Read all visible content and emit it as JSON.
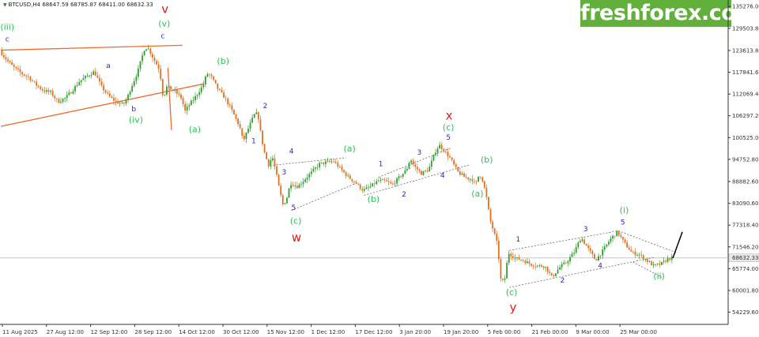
{
  "header": {
    "symbol": "BTCUSD,H4",
    "open": "68647.59",
    "high": "68785.87",
    "low": "68411.00",
    "close": "68632.33"
  },
  "brand": {
    "logo_text": "freshforex.com",
    "color": "#62b03c"
  },
  "colors": {
    "background": "#ffffff",
    "candle_up": "#2e9f2e",
    "candle_down": "#e0701e",
    "axis": "#333333",
    "trend_lines": "#ee6a2a",
    "channel_lines": "#555555",
    "current_price_line": "#c8c8c8",
    "wave_blue": "#2828b8",
    "wave_green": "#2ec25a",
    "wave_red": "#e01b1b",
    "impulse": "#000000"
  },
  "chart_data": {
    "type": "candlestick",
    "title": "",
    "xlabel": "",
    "ylabel": "",
    "ylim": [
      51000,
      137000
    ],
    "current_price": 68632.33,
    "y_tick_labels": [
      "135276.00",
      "129503.80",
      "123613.80",
      "117841.60",
      "112069.40",
      "106297.20",
      "100525.00",
      "94752.80",
      "88882.60",
      "83090.60",
      "77318.40",
      "71546.20",
      "65774.00",
      "60001.80",
      "54229.60"
    ],
    "x_tick_labels": [
      "11 Aug 2025",
      "27 Aug 12:00",
      "12 Sep 12:00",
      "28 Sep 12:00",
      "14 Oct 12:00",
      "30 Oct 12:00",
      "15 Nov 12:00",
      "1 Dec 12:00",
      "17 Dec 12:00",
      "3 Jan 20:00",
      "19 Jan 20:00",
      "5 Feb 00:00",
      "21 Feb 00:00",
      "9 Mar 00:00",
      "25 Mar 00:00"
    ],
    "x_range": [
      0,
      100
    ],
    "price_path": [
      [
        0,
        123500
      ],
      [
        1,
        121000
      ],
      [
        2,
        119000
      ],
      [
        3,
        117500
      ],
      [
        4,
        116500
      ],
      [
        5,
        114500
      ],
      [
        6,
        113000
      ],
      [
        7,
        112500
      ],
      [
        8,
        110000
      ],
      [
        9,
        111000
      ],
      [
        10,
        113000
      ],
      [
        11,
        115500
      ],
      [
        12,
        116800
      ],
      [
        13,
        118000
      ],
      [
        13.5,
        116000
      ],
      [
        14,
        114000
      ],
      [
        15,
        111500
      ],
      [
        16,
        110000
      ],
      [
        17,
        109300
      ],
      [
        17.5,
        110800
      ],
      [
        18,
        113500
      ],
      [
        19,
        118000
      ],
      [
        19.5,
        121500
      ],
      [
        20,
        124500
      ],
      [
        20.5,
        124000
      ],
      [
        21,
        122000
      ],
      [
        22,
        118500
      ],
      [
        22.5,
        111000
      ],
      [
        23,
        114000
      ],
      [
        24,
        113000
      ],
      [
        25,
        111000
      ],
      [
        25.5,
        107500
      ],
      [
        26,
        109000
      ],
      [
        27,
        111500
      ],
      [
        28,
        114500
      ],
      [
        28.5,
        117500
      ],
      [
        29,
        117000
      ],
      [
        30,
        113500
      ],
      [
        31,
        111000
      ],
      [
        32,
        107500
      ],
      [
        33,
        103500
      ],
      [
        33.5,
        99500
      ],
      [
        34,
        102000
      ],
      [
        35,
        106500
      ],
      [
        35.5,
        107000
      ],
      [
        36,
        100500
      ],
      [
        36.5,
        96000
      ],
      [
        37,
        93300
      ],
      [
        37.5,
        95500
      ],
      [
        38,
        91500
      ],
      [
        38.5,
        86500
      ],
      [
        39,
        82500
      ],
      [
        39.5,
        84500
      ],
      [
        40,
        88500
      ],
      [
        41,
        87500
      ],
      [
        42,
        89500
      ],
      [
        43,
        91500
      ],
      [
        44,
        93500
      ],
      [
        45,
        94000
      ],
      [
        46,
        94200
      ],
      [
        47,
        92000
      ],
      [
        48,
        90000
      ],
      [
        49,
        88500
      ],
      [
        50,
        86500
      ],
      [
        51,
        87500
      ],
      [
        52,
        89000
      ],
      [
        53,
        89000
      ],
      [
        54,
        88000
      ],
      [
        55,
        90000
      ],
      [
        56,
        92000
      ],
      [
        56.5,
        95000
      ],
      [
        57,
        93000
      ],
      [
        58,
        91000
      ],
      [
        59,
        92000
      ],
      [
        60,
        97000
      ],
      [
        60.5,
        98500
      ],
      [
        61,
        97500
      ],
      [
        62,
        95000
      ],
      [
        63,
        91500
      ],
      [
        64,
        90000
      ],
      [
        65,
        89500
      ],
      [
        65.5,
        88000
      ],
      [
        66,
        91000
      ],
      [
        66.5,
        89000
      ],
      [
        67,
        84500
      ],
      [
        67.5,
        78500
      ],
      [
        68,
        75500
      ],
      [
        68.5,
        72000
      ],
      [
        69,
        62000
      ],
      [
        69.5,
        63000
      ],
      [
        70,
        70000
      ],
      [
        71,
        68500
      ],
      [
        72,
        68000
      ],
      [
        73,
        67000
      ],
      [
        74,
        66500
      ],
      [
        75,
        66500
      ],
      [
        76,
        63500
      ],
      [
        77,
        66000
      ],
      [
        78,
        67500
      ],
      [
        79,
        70000
      ],
      [
        80,
        74000
      ],
      [
        81,
        71000
      ],
      [
        82,
        68000
      ],
      [
        83,
        70500
      ],
      [
        84,
        73500
      ],
      [
        85,
        75500
      ],
      [
        86,
        72500
      ],
      [
        87,
        70000
      ],
      [
        88,
        69500
      ],
      [
        89,
        68000
      ],
      [
        90,
        66500
      ],
      [
        91,
        67000
      ],
      [
        92,
        68400
      ],
      [
        92.5,
        68600
      ]
    ],
    "impulse_line": [
      [
        92.5,
        68600
      ],
      [
        93.8,
        75500
      ]
    ],
    "orange_lines": [
      [
        [
          0,
          123700
        ],
        [
          25,
          125000
        ]
      ],
      [
        [
          0,
          103500
        ],
        [
          28,
          114800
        ]
      ],
      [
        [
          23,
          119000
        ],
        [
          23.5,
          102500
        ]
      ]
    ],
    "channel_lines": [
      [
        [
          37.5,
          93200
        ],
        [
          47.5,
          95200
        ]
      ],
      [
        [
          40,
          81200
        ],
        [
          49,
          88500
        ]
      ],
      [
        [
          50,
          85200
        ],
        [
          64.5,
          93300
        ]
      ],
      [
        [
          52,
          90000
        ],
        [
          62,
          97800
        ]
      ],
      [
        [
          70,
          70600
        ],
        [
          85,
          75800
        ]
      ],
      [
        [
          70,
          60800
        ],
        [
          90,
          68800
        ]
      ],
      [
        [
          85,
          75800
        ],
        [
          93,
          70000
        ]
      ],
      [
        [
          87,
          67500
        ],
        [
          91,
          63500
        ]
      ]
    ],
    "wave_labels_blue": [
      {
        "text": "c",
        "x": 0.9,
        "y": 126000
      },
      {
        "text": "a",
        "x": 14.8,
        "y": 119000
      },
      {
        "text": "b",
        "x": 18.3,
        "y": 107500
      },
      {
        "text": "c",
        "x": 22.3,
        "y": 126900
      },
      {
        "text": "1",
        "x": 34.8,
        "y": 99000
      },
      {
        "text": "2",
        "x": 36.4,
        "y": 108300
      },
      {
        "text": "3",
        "x": 39.0,
        "y": 90800
      },
      {
        "text": "4",
        "x": 40.0,
        "y": 96300
      },
      {
        "text": "5",
        "x": 40.3,
        "y": 81300
      },
      {
        "text": "1",
        "x": 52.3,
        "y": 93000
      },
      {
        "text": "2",
        "x": 55.5,
        "y": 84900
      },
      {
        "text": "3",
        "x": 57.6,
        "y": 96000
      },
      {
        "text": "4",
        "x": 60.8,
        "y": 89900
      },
      {
        "text": "5",
        "x": 61.6,
        "y": 100000
      },
      {
        "text": "1",
        "x": 71.2,
        "y": 73000
      },
      {
        "text": "2",
        "x": 77.3,
        "y": 62100
      },
      {
        "text": "3",
        "x": 80.5,
        "y": 75700
      },
      {
        "text": "4",
        "x": 82.5,
        "y": 66000
      },
      {
        "text": "5",
        "x": 85.6,
        "y": 77500
      }
    ],
    "wave_labels_green": [
      {
        "text": "(iii)",
        "x": 0.9,
        "y": 129000
      },
      {
        "text": "(v)",
        "x": 22.5,
        "y": 130000
      },
      {
        "text": "(iv)",
        "x": 18.6,
        "y": 104500
      },
      {
        "text": "(a)",
        "x": 26.7,
        "y": 102000
      },
      {
        "text": "(b)",
        "x": 30.6,
        "y": 120000
      },
      {
        "text": "(c)",
        "x": 40.6,
        "y": 77700
      },
      {
        "text": "(a)",
        "x": 48.0,
        "y": 96800
      },
      {
        "text": "(b)",
        "x": 51.3,
        "y": 83400
      },
      {
        "text": "(c)",
        "x": 61.6,
        "y": 102500
      },
      {
        "text": "(b)",
        "x": 66.9,
        "y": 93900
      },
      {
        "text": "(a)",
        "x": 65.6,
        "y": 84900
      },
      {
        "text": "(c)",
        "x": 70.3,
        "y": 58700
      },
      {
        "text": "(i)",
        "x": 85.8,
        "y": 80500
      },
      {
        "text": "(ii)",
        "x": 90.6,
        "y": 63000
      }
    ],
    "wave_labels_red": [
      {
        "text": "v",
        "x": 22.6,
        "y": 133500
      },
      {
        "text": "w",
        "x": 40.7,
        "y": 73000
      },
      {
        "text": "x",
        "x": 61.7,
        "y": 105300
      },
      {
        "text": "y",
        "x": 70.5,
        "y": 54500
      }
    ]
  }
}
